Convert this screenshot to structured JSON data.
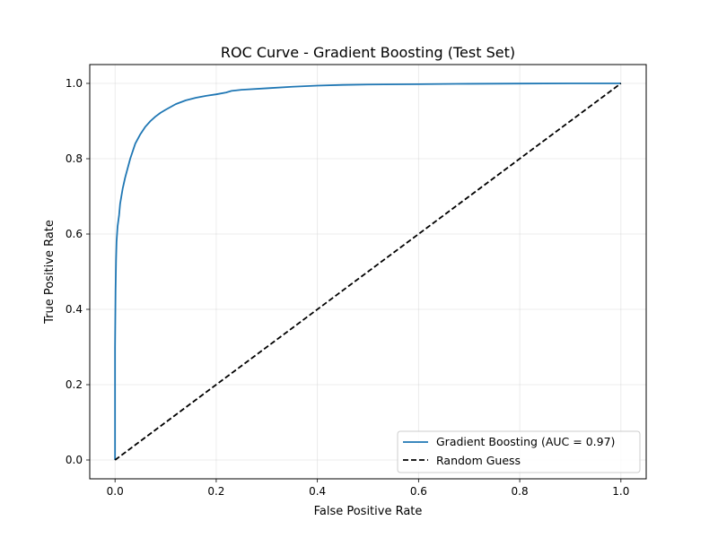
{
  "chart_data": {
    "type": "line",
    "title": "ROC Curve - Gradient Boosting (Test Set)",
    "xlabel": "False Positive Rate",
    "ylabel": "True Positive Rate",
    "xlim": [
      -0.05,
      1.05
    ],
    "ylim": [
      -0.05,
      1.05
    ],
    "grid": true,
    "legend_position": "bottom-right",
    "xticks": [
      {
        "value": 0.0,
        "label": "0.0"
      },
      {
        "value": 0.2,
        "label": "0.2"
      },
      {
        "value": 0.4,
        "label": "0.4"
      },
      {
        "value": 0.6,
        "label": "0.6"
      },
      {
        "value": 0.8,
        "label": "0.8"
      },
      {
        "value": 1.0,
        "label": "1.0"
      }
    ],
    "yticks": [
      {
        "value": 0.0,
        "label": "0.0"
      },
      {
        "value": 0.2,
        "label": "0.2"
      },
      {
        "value": 0.4,
        "label": "0.4"
      },
      {
        "value": 0.6,
        "label": "0.6"
      },
      {
        "value": 0.8,
        "label": "0.8"
      },
      {
        "value": 1.0,
        "label": "1.0"
      }
    ],
    "series": [
      {
        "name": "Gradient Boosting (AUC = 0.97)",
        "color": "#1f77b4",
        "style": "solid",
        "x": [
          0.0,
          0.0,
          0.001,
          0.002,
          0.003,
          0.005,
          0.008,
          0.01,
          0.015,
          0.02,
          0.03,
          0.04,
          0.05,
          0.06,
          0.07,
          0.08,
          0.09,
          0.1,
          0.12,
          0.14,
          0.16,
          0.18,
          0.2,
          0.22,
          0.23,
          0.25,
          0.3,
          0.35,
          0.4,
          0.45,
          0.5,
          0.6,
          0.7,
          0.8,
          0.9,
          1.0
        ],
        "y": [
          0.0,
          0.3,
          0.45,
          0.53,
          0.58,
          0.62,
          0.65,
          0.68,
          0.72,
          0.75,
          0.8,
          0.84,
          0.865,
          0.885,
          0.9,
          0.912,
          0.922,
          0.93,
          0.945,
          0.955,
          0.962,
          0.967,
          0.971,
          0.976,
          0.98,
          0.983,
          0.987,
          0.991,
          0.994,
          0.996,
          0.997,
          0.998,
          0.999,
          0.9995,
          1.0,
          1.0
        ]
      },
      {
        "name": "Random Guess",
        "color": "#000000",
        "style": "dashed",
        "x": [
          0.0,
          1.0
        ],
        "y": [
          0.0,
          1.0
        ]
      }
    ]
  }
}
